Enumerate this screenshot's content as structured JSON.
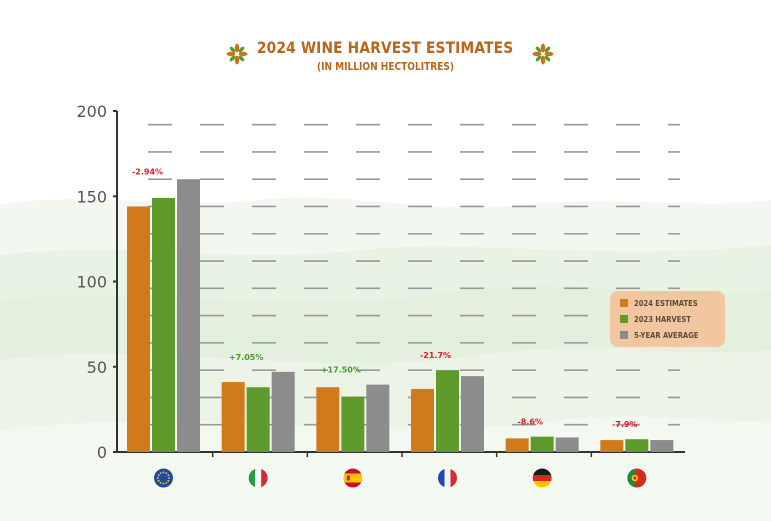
{
  "header": {
    "title": "2024 WINE HARVEST  ESTIMATES",
    "subtitle": "(IN MILLION HECTOLITRES)"
  },
  "colors": {
    "estimate_2024": "#d17a1b",
    "harvest_2023": "#5f9a2c",
    "five_year_avg": "#8c8c8c",
    "change_negative": "#d61f26",
    "change_positive": "#4a9a2c",
    "axis_text": "#555555",
    "title": "#b9651a",
    "legend_bg": "#f2c7a0"
  },
  "legend": [
    {
      "label": "2024 ESTIMATES",
      "color": "#d17a1b"
    },
    {
      "label": "2023 HARVEST",
      "color": "#5f9a2c"
    },
    {
      "label": "5-YEAR AVERAGE",
      "color": "#8c8c8c"
    }
  ],
  "chart_data": {
    "type": "bar",
    "title": "2024 WINE HARVEST  ESTIMATES",
    "subtitle": "(IN MILLION HECTOLITRES)",
    "categories": [
      "EU",
      "Italy",
      "Spain",
      "France",
      "Germany",
      "Portugal"
    ],
    "category_icons": [
      "eu-flag-icon",
      "italy-flag-icon",
      "spain-flag-icon",
      "france-flag-icon",
      "germany-flag-icon",
      "portugal-flag-icon"
    ],
    "series": [
      {
        "name": "2024 ESTIMATES",
        "values": [
          144,
          41,
          38,
          37,
          8,
          7
        ]
      },
      {
        "name": "2023 HARVEST",
        "values": [
          149,
          38,
          32.5,
          48,
          9,
          7.5
        ]
      },
      {
        "name": "5-YEAR AVERAGE",
        "values": [
          160,
          47,
          39.5,
          44.5,
          8.5,
          7
        ]
      }
    ],
    "annotations": [
      "-2.94%",
      "+7.05%",
      "+17.50%",
      "-21.7%",
      "-8.6%",
      "-7.9%"
    ],
    "annotation_signs": [
      "negative",
      "positive",
      "positive",
      "negative",
      "negative",
      "negative"
    ],
    "yticks": [
      "0",
      "50",
      "100",
      "150",
      "200"
    ],
    "ylim": [
      0,
      200
    ],
    "grid": "dashed horizontal",
    "legend_position": "right"
  }
}
